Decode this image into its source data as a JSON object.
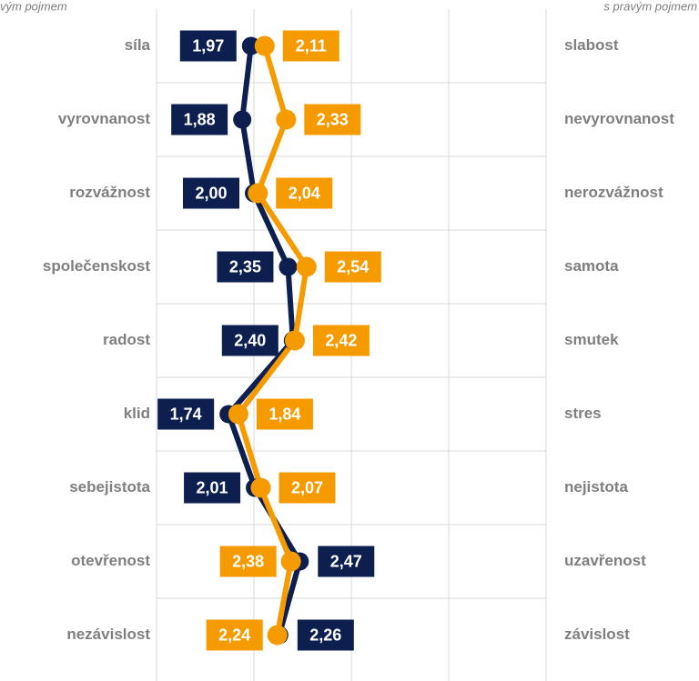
{
  "chart_data": {
    "type": "line",
    "left_note": "vým pojmem",
    "right_note": "s pravým pojmem",
    "categories": [
      "síla",
      "vyrovnanost",
      "rozvážnost",
      "společenskost",
      "radost",
      "klid",
      "sebejistota",
      "otevřenost",
      "nezávislost"
    ],
    "categories_right": [
      "slabost",
      "nevyrovnanost",
      "nerozvážnost",
      "samota",
      "smutek",
      "stres",
      "nejistota",
      "uzavřenost",
      "závislost"
    ],
    "series": [
      {
        "color": "#0c1f4f",
        "values": [
          1.97,
          1.88,
          2.0,
          2.35,
          2.4,
          1.74,
          2.01,
          2.47,
          2.26
        ],
        "value_labels": [
          "1,97",
          "1,88",
          "2,00",
          "2,35",
          "2,40",
          "1,74",
          "2,01",
          "2,47",
          "2,26"
        ]
      },
      {
        "color": "#f59b00",
        "values": [
          2.11,
          2.33,
          2.04,
          2.54,
          2.42,
          1.84,
          2.07,
          2.38,
          2.24
        ],
        "value_labels": [
          "2,11",
          "2,33",
          "2,04",
          "2,54",
          "2,42",
          "1,84",
          "2,07",
          "2,38",
          "2,24"
        ]
      }
    ],
    "xlim": [
      1,
      5
    ],
    "xticks": [
      1,
      2,
      3,
      4,
      5
    ],
    "grid": true
  }
}
